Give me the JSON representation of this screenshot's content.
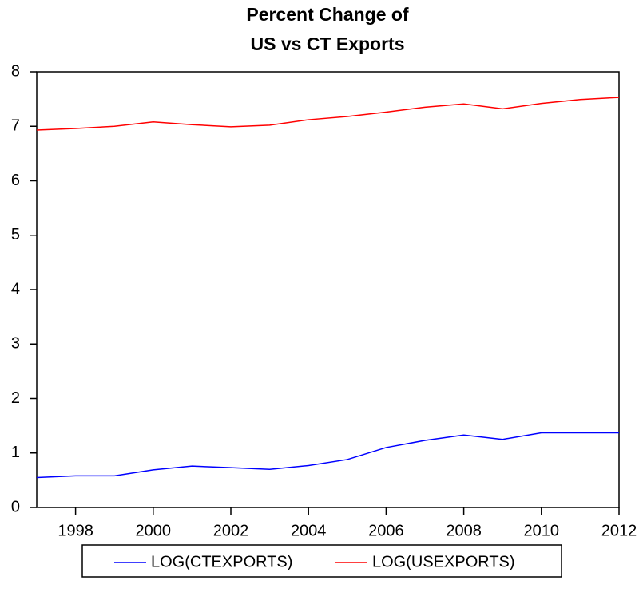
{
  "chart_data": {
    "type": "line",
    "title": [
      "Percent Change of",
      "US vs CT Exports"
    ],
    "x": [
      1997,
      1998,
      1999,
      2000,
      2001,
      2002,
      2003,
      2004,
      2005,
      2006,
      2007,
      2008,
      2009,
      2010,
      2011,
      2012
    ],
    "series": [
      {
        "name": "LOG(CTEXPORTS)",
        "color": "#0000ff",
        "values": [
          0.55,
          0.58,
          0.58,
          0.69,
          0.76,
          0.73,
          0.7,
          0.77,
          0.88,
          1.1,
          1.23,
          1.33,
          1.25,
          1.37,
          1.37,
          1.37
        ]
      },
      {
        "name": "LOG(USEXPORTS)",
        "color": "#ff0000",
        "values": [
          6.93,
          6.96,
          7.0,
          7.08,
          7.03,
          6.99,
          7.02,
          7.12,
          7.18,
          7.26,
          7.35,
          7.41,
          7.32,
          7.42,
          7.49,
          7.53
        ]
      }
    ],
    "xlim": [
      1997,
      2012
    ],
    "xticks": [
      1998,
      2000,
      2002,
      2004,
      2006,
      2008,
      2010,
      2012
    ],
    "ylim": [
      0,
      8
    ],
    "yticks": [
      0,
      1,
      2,
      3,
      4,
      5,
      6,
      7,
      8
    ],
    "legend": "bottom"
  }
}
